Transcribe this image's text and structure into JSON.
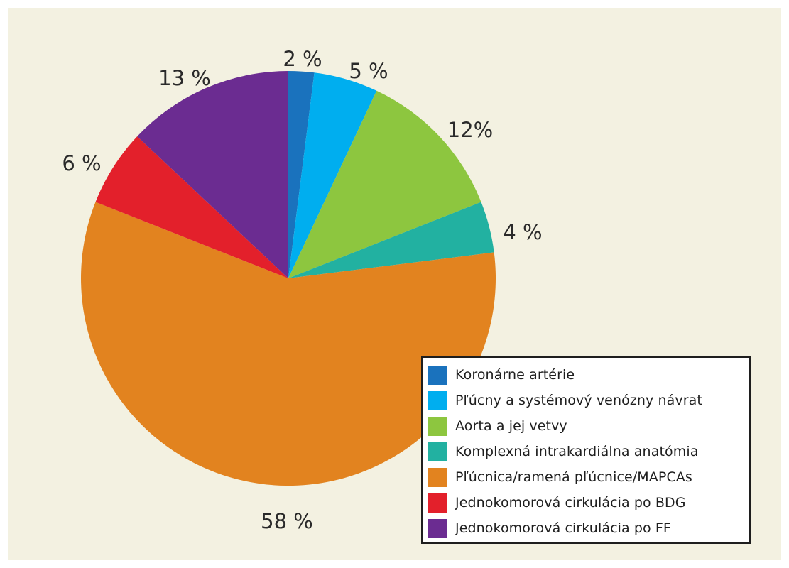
{
  "chart_data": {
    "type": "pie",
    "start_angle_deg": 0,
    "direction": "clockwise",
    "slices": [
      {
        "label": "Koronárne artérie",
        "value": 2,
        "value_label": "2 %",
        "color": "#1a72bd"
      },
      {
        "label": "Pľúcny a systémový venózny návrat",
        "value": 5,
        "value_label": "5 %",
        "color": "#00aeef"
      },
      {
        "label": "Aorta a jej vetvy",
        "value": 12,
        "value_label": "12%",
        "color": "#8dc63f"
      },
      {
        "label": "Komplexná intrakardiálna anatómia",
        "value": 4,
        "value_label": "4 %",
        "color": "#22b1a1"
      },
      {
        "label": "Pľúcnica/ramená pľúcnice/MAPCAs",
        "value": 58,
        "value_label": "58 %",
        "color": "#e2831f"
      },
      {
        "label": "Jednokomorová cirkulácia po BDG",
        "value": 6,
        "value_label": "6 %",
        "color": "#e3202b"
      },
      {
        "label": "Jednokomorová cirkulácia po FF",
        "value": 13,
        "value_label": "13 %",
        "color": "#6b2c91"
      }
    ],
    "legend_position": "bottom-right"
  }
}
